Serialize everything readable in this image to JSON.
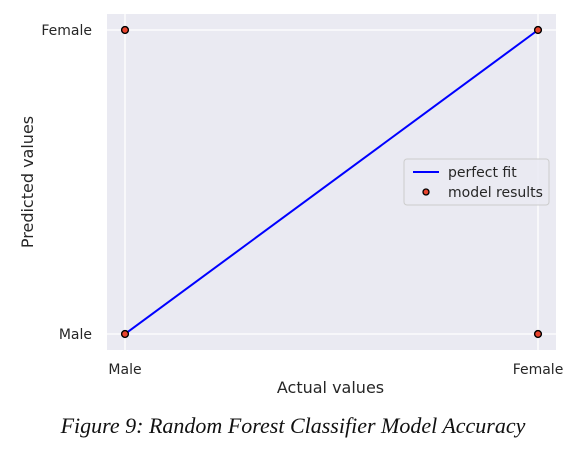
{
  "chart_data": {
    "type": "scatter",
    "x_categories": [
      "Male",
      "Female"
    ],
    "y_categories": [
      "Male",
      "Female"
    ],
    "xlabel": "Actual values",
    "ylabel": "Predicted values",
    "grid": true,
    "legend_position": "center-right",
    "series": [
      {
        "name": "perfect fit",
        "kind": "line",
        "color": "#0000ff",
        "points": [
          {
            "x": "Male",
            "y": "Male"
          },
          {
            "x": "Female",
            "y": "Female"
          }
        ]
      },
      {
        "name": "model results",
        "kind": "scatter",
        "color": "#e8442e",
        "edge_color": "#000000",
        "points": [
          {
            "x": "Male",
            "y": "Female"
          },
          {
            "x": "Female",
            "y": "Female"
          },
          {
            "x": "Male",
            "y": "Male"
          },
          {
            "x": "Female",
            "y": "Male"
          }
        ]
      }
    ],
    "background_color": "#eaeaf2",
    "grid_color": "#ffffff"
  },
  "caption": "Figure 9: Random Forest Classifier Model Accuracy"
}
